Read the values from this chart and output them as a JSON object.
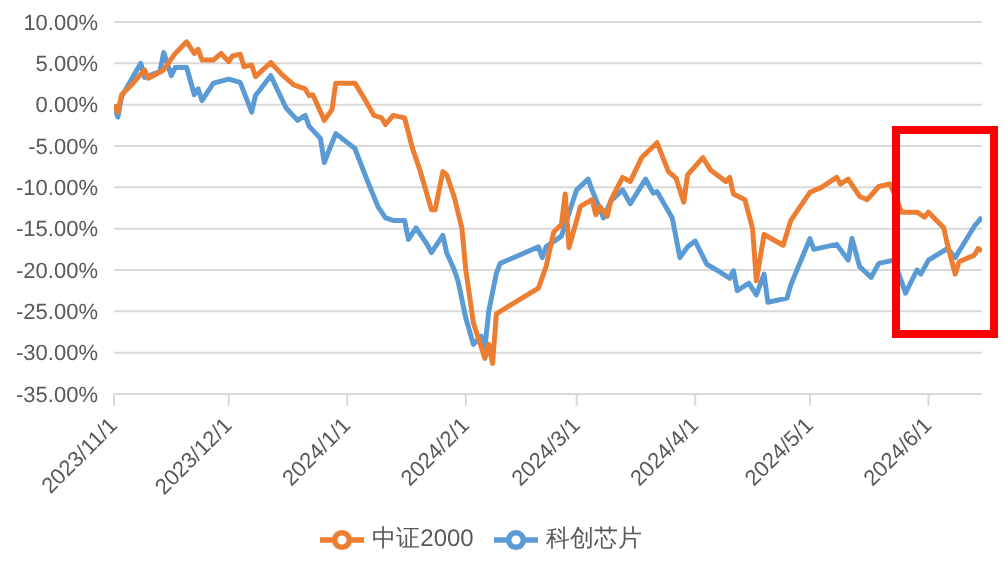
{
  "chart_data": {
    "type": "line",
    "xlim": [
      "2023-11-01",
      "2024-06-15"
    ],
    "xticks": [
      {
        "value": "2023-11-01",
        "label": "2023/11/1"
      },
      {
        "value": "2023-12-01",
        "label": "2023/12/1"
      },
      {
        "value": "2024-01-01",
        "label": "2024/1/1"
      },
      {
        "value": "2024-02-01",
        "label": "2024/2/1"
      },
      {
        "value": "2024-03-01",
        "label": "2024/3/1"
      },
      {
        "value": "2024-04-01",
        "label": "2024/4/1"
      },
      {
        "value": "2024-05-01",
        "label": "2024/5/1"
      },
      {
        "value": "2024-06-01",
        "label": "2024/6/1"
      }
    ],
    "ylim": [
      -35,
      10
    ],
    "yticks": [
      {
        "value": -35,
        "label": "-35.00%"
      },
      {
        "value": -30,
        "label": "-30.00%"
      },
      {
        "value": -25,
        "label": "-25.00%"
      },
      {
        "value": -20,
        "label": "-20.00%"
      },
      {
        "value": -15,
        "label": "-15.00%"
      },
      {
        "value": -10,
        "label": "-10.00%"
      },
      {
        "value": -5,
        "label": "-5.00%"
      },
      {
        "value": 0,
        "label": "0.00%"
      },
      {
        "value": 5,
        "label": "5.00%"
      },
      {
        "value": 10,
        "label": "10.00%"
      }
    ],
    "grid": "y",
    "legend": "bottom",
    "marker": "none",
    "line_style": "solid",
    "series": [
      {
        "name": "科创芯片",
        "color": "#5b9bd5",
        "x": [
          "2023-11-01",
          "2023-11-02",
          "2023-11-03",
          "2023-11-08",
          "2023-11-09",
          "2023-11-13",
          "2023-11-14",
          "2023-11-16",
          "2023-11-17",
          "2023-11-20",
          "2023-11-22",
          "2023-11-23",
          "2023-11-24",
          "2023-11-27",
          "2023-12-01",
          "2023-12-04",
          "2023-12-06",
          "2023-12-07",
          "2023-12-08",
          "2023-12-12",
          "2023-12-16",
          "2023-12-19",
          "2023-12-21",
          "2023-12-22",
          "2023-12-25",
          "2023-12-26",
          "2023-12-27",
          "2023-12-29",
          "2024-01-03",
          "2024-01-06",
          "2024-01-09",
          "2024-01-11",
          "2024-01-13",
          "2024-01-16",
          "2024-01-17",
          "2024-01-19",
          "2024-01-22",
          "2024-01-23",
          "2024-01-26",
          "2024-01-27",
          "2024-01-29",
          "2024-01-30",
          "2024-02-01",
          "2024-02-03",
          "2024-02-05",
          "2024-02-06",
          "2024-02-07",
          "2024-02-09",
          "2024-02-10",
          "2024-02-20",
          "2024-02-21",
          "2024-02-22",
          "2024-02-26",
          "2024-03-01",
          "2024-03-04",
          "2024-03-05",
          "2024-03-08",
          "2024-03-10",
          "2024-03-13",
          "2024-03-15",
          "2024-03-19",
          "2024-03-21",
          "2024-03-22",
          "2024-03-26",
          "2024-03-28",
          "2024-03-30",
          "2024-04-01",
          "2024-04-04",
          "2024-04-07",
          "2024-04-10",
          "2024-04-11",
          "2024-04-12",
          "2024-04-15",
          "2024-04-17",
          "2024-04-19",
          "2024-04-20",
          "2024-04-25",
          "2024-04-26",
          "2024-05-01",
          "2024-05-02",
          "2024-05-08",
          "2024-05-11",
          "2024-05-12",
          "2024-05-14",
          "2024-05-17",
          "2024-05-19",
          "2024-05-23",
          "2024-05-26",
          "2024-05-29",
          "2024-05-30",
          "2024-06-01",
          "2024-06-06",
          "2024-06-08",
          "2024-06-13",
          "2024-06-15"
        ],
        "values": [
          0,
          -1.5,
          1,
          5,
          3.3,
          4,
          6.3,
          3.5,
          4.5,
          4.5,
          1.2,
          1.9,
          0.5,
          2.6,
          3.1,
          2.7,
          0.3,
          -0.9,
          1.1,
          3.5,
          -0.4,
          -1.9,
          -1.3,
          -2.6,
          -4.1,
          -7,
          -5.8,
          -3.5,
          -5.3,
          -8.9,
          -12.3,
          -13.7,
          -14,
          -14,
          -16.3,
          -14.9,
          -17,
          -17.9,
          -15.8,
          -17.9,
          -20,
          -21.4,
          -25.8,
          -29,
          -28,
          -29.4,
          -25,
          -20.4,
          -19.2,
          -17.2,
          -18.5,
          -17.2,
          -15.9,
          -10.3,
          -9,
          -10.3,
          -13.7,
          -11.6,
          -10.3,
          -12,
          -9,
          -10.7,
          -10.5,
          -13.7,
          -18.5,
          -17.2,
          -16.5,
          -19.3,
          -20.1,
          -21,
          -20.1,
          -22.5,
          -21.6,
          -23,
          -20.5,
          -23.9,
          -23.4,
          -21.8,
          -16.2,
          -17.5,
          -16.9,
          -18.8,
          -16.2,
          -19.6,
          -20.9,
          -19.2,
          -18.8,
          -22.8,
          -20,
          -20.5,
          -18.8,
          -17.4,
          -18.5,
          -14.7,
          -13.6
        ]
      },
      {
        "name": "中证2000",
        "color": "#ed7d31",
        "x": [
          "2023-11-01",
          "2023-11-02",
          "2023-11-03",
          "2023-11-06",
          "2023-11-09",
          "2023-11-10",
          "2023-11-14",
          "2023-11-17",
          "2023-11-20",
          "2023-11-22",
          "2023-11-23",
          "2023-11-24",
          "2023-11-27",
          "2023-11-29",
          "2023-12-01",
          "2023-12-02",
          "2023-12-04",
          "2023-12-05",
          "2023-12-07",
          "2023-12-08",
          "2023-12-12",
          "2023-12-15",
          "2023-12-18",
          "2023-12-21",
          "2023-12-22",
          "2023-12-23",
          "2023-12-26",
          "2023-12-28",
          "2023-12-29",
          "2024-01-03",
          "2024-01-05",
          "2024-01-08",
          "2024-01-10",
          "2024-01-11",
          "2024-01-13",
          "2024-01-16",
          "2024-01-18",
          "2024-01-20",
          "2024-01-23",
          "2024-01-24",
          "2024-01-26",
          "2024-01-27",
          "2024-01-29",
          "2024-01-31",
          "2024-02-01",
          "2024-02-03",
          "2024-02-06",
          "2024-02-07",
          "2024-02-08",
          "2024-02-09",
          "2024-02-10",
          "2024-02-20",
          "2024-02-22",
          "2024-02-24",
          "2024-02-26",
          "2024-02-27",
          "2024-02-28",
          "2024-03-02",
          "2024-03-05",
          "2024-03-06",
          "2024-03-07",
          "2024-03-09",
          "2024-03-10",
          "2024-03-13",
          "2024-03-15",
          "2024-03-18",
          "2024-03-22",
          "2024-03-25",
          "2024-03-27",
          "2024-03-29",
          "2024-03-30",
          "2024-04-03",
          "2024-04-05",
          "2024-04-09",
          "2024-04-10",
          "2024-04-11",
          "2024-04-14",
          "2024-04-16",
          "2024-04-17",
          "2024-04-19",
          "2024-04-24",
          "2024-04-26",
          "2024-05-01",
          "2024-05-04",
          "2024-05-08",
          "2024-05-09",
          "2024-05-11",
          "2024-05-14",
          "2024-05-16",
          "2024-05-19",
          "2024-05-22",
          "2024-05-25",
          "2024-05-29",
          "2024-05-31",
          "2024-06-01",
          "2024-06-05",
          "2024-06-06",
          "2024-06-08",
          "2024-06-09",
          "2024-06-13",
          "2024-06-14",
          "2024-06-15"
        ],
        "values": [
          0,
          -0.9,
          1.2,
          2.6,
          4.2,
          3.2,
          4.2,
          6.2,
          7.6,
          6.2,
          6.7,
          5.4,
          5.4,
          6.2,
          5.2,
          5.9,
          6.1,
          4.6,
          4.8,
          3.4,
          5.1,
          3.6,
          2.4,
          1.9,
          1.1,
          1.2,
          -1.9,
          -0.6,
          2.6,
          2.6,
          1.1,
          -1.3,
          -1.6,
          -2.4,
          -1.3,
          -1.6,
          -5.2,
          -7.9,
          -12.7,
          -12.7,
          -8.1,
          -8.5,
          -11.2,
          -15,
          -20,
          -26.4,
          -30.7,
          -29,
          -31.3,
          -25.3,
          -25,
          -22.2,
          -19.6,
          -15.4,
          -14.5,
          -10.8,
          -17.3,
          -12.3,
          -11.5,
          -13.3,
          -12.3,
          -13.5,
          -11.5,
          -8.8,
          -9.3,
          -6.4,
          -4.6,
          -8.1,
          -8.9,
          -11.8,
          -8.5,
          -6.4,
          -7.9,
          -9.3,
          -8.8,
          -10.8,
          -11.5,
          -15,
          -21.3,
          -15.7,
          -17,
          -14,
          -10.6,
          -10,
          -8.8,
          -9.6,
          -9,
          -11.1,
          -11.5,
          -9.9,
          -9.6,
          -13,
          -13,
          -13.6,
          -13,
          -14.9,
          -17,
          -20.5,
          -19,
          -18.2,
          -17.4,
          -17.7
        ]
      }
    ]
  }
}
